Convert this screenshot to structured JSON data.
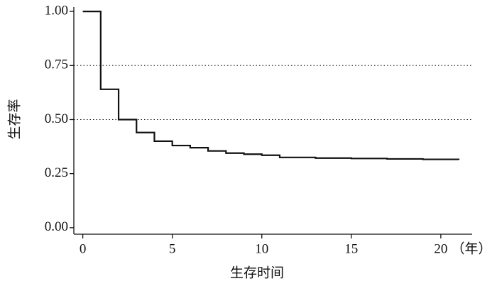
{
  "chart_data": {
    "type": "step",
    "xlabel": "生存时间",
    "ylabel": "生存率",
    "x_unit": "（年）",
    "x": [
      0,
      1,
      2,
      3,
      4,
      5,
      6,
      7,
      8,
      9,
      10,
      11,
      13,
      15,
      17,
      19,
      21
    ],
    "values": [
      1.0,
      0.64,
      0.5,
      0.44,
      0.4,
      0.38,
      0.37,
      0.355,
      0.345,
      0.34,
      0.335,
      0.325,
      0.322,
      0.32,
      0.318,
      0.316,
      0.314
    ],
    "color": "#111111",
    "xlim": [
      -0.5,
      21.75
    ],
    "ylim": [
      -0.03,
      1.02
    ],
    "xticks": [
      0,
      5,
      10,
      15,
      20
    ],
    "yticks": [
      {
        "value": 0,
        "label": "0.00"
      },
      {
        "value": 0.25,
        "label": "0.25"
      },
      {
        "value": 0.5,
        "label": "0.50"
      },
      {
        "value": 0.75,
        "label": "0.75"
      },
      {
        "value": 1,
        "label": "1.00"
      }
    ],
    "hlines": [
      0.75,
      0.5
    ]
  }
}
